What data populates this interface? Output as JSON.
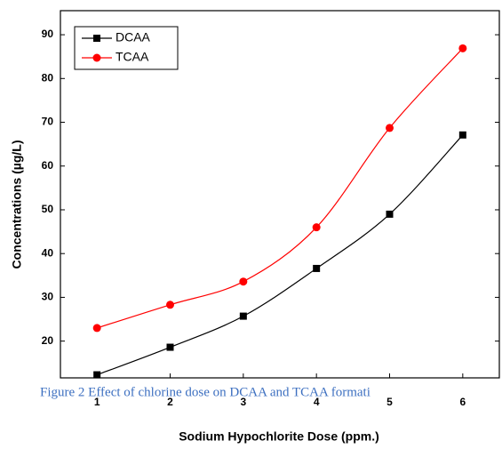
{
  "chart_data": {
    "type": "line",
    "x_label": "Sodium Hypochlorite Dose (ppm.)",
    "y_label": "Concentrations (µg/L)",
    "caption": "Figure 2  Effect of chlorine dose on DCAA and TCAA formati",
    "x": [
      1,
      2,
      3,
      4,
      5,
      6
    ],
    "series": [
      {
        "name": "DCAA",
        "color": "#000000",
        "marker": "square",
        "values": [
          12.3,
          18.6,
          25.7,
          36.6,
          49.0,
          67.1
        ]
      },
      {
        "name": "TCAA",
        "color": "#ff0000",
        "marker": "circle",
        "values": [
          23.0,
          28.3,
          33.6,
          46.0,
          68.7,
          86.9
        ]
      }
    ],
    "xlim": [
      0.5,
      6.5
    ],
    "xticks": [
      1,
      2,
      3,
      4,
      5,
      6
    ],
    "ylim": [
      11.6,
      95.5
    ],
    "yticks": [
      20,
      30,
      40,
      50,
      60,
      70,
      80,
      90
    ],
    "legend": "top-left"
  }
}
